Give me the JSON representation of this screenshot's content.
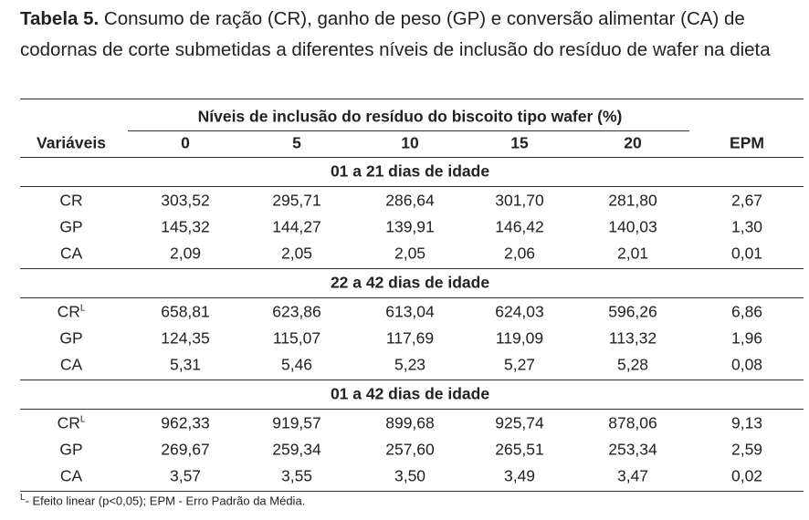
{
  "caption": {
    "label": "Tabela 5.",
    "text": "Consumo de ração (CR), ganho de peso (GP) e conversão alimentar (CA) de codornas de corte submetidas a diferentes níveis de inclusão do resíduo de wafer na dieta"
  },
  "table": {
    "group_header": "Níveis de inclusão do resíduo do biscoito tipo wafer (%)",
    "columns": [
      "Variáveis",
      "0",
      "5",
      "10",
      "15",
      "20",
      "EPM"
    ],
    "sections": [
      {
        "title": "01 a 21 dias de idade",
        "rows": [
          {
            "variable": "CR",
            "values": [
              "303,52",
              "295,71",
              "286,64",
              "301,70",
              "281,80",
              "2,67"
            ]
          },
          {
            "variable": "GP",
            "values": [
              "145,32",
              "144,27",
              "139,91",
              "146,42",
              "140,03",
              "1,30"
            ]
          },
          {
            "variable": "CA",
            "values": [
              "2,09",
              "2,05",
              "2,05",
              "2,06",
              "2,01",
              "0,01"
            ]
          }
        ]
      },
      {
        "title": "22 a 42 dias de idade",
        "rows": [
          {
            "variable": "CR",
            "sup": "L",
            "values": [
              "658,81",
              "623,86",
              "613,04",
              "624,03",
              "596,26",
              "6,86"
            ]
          },
          {
            "variable": "GP",
            "values": [
              "124,35",
              "115,07",
              "117,69",
              "119,09",
              "113,32",
              "1,96"
            ]
          },
          {
            "variable": "CA",
            "values": [
              "5,31",
              "5,46",
              "5,23",
              "5,27",
              "5,28",
              "0,08"
            ]
          }
        ]
      },
      {
        "title": "01 a 42 dias de idade",
        "rows": [
          {
            "variable": "CR",
            "sup": "L",
            "values": [
              "962,33",
              "919,57",
              "899,68",
              "925,74",
              "878,06",
              "9,13"
            ]
          },
          {
            "variable": "GP",
            "values": [
              "269,67",
              "259,34",
              "257,60",
              "265,51",
              "253,34",
              "2,59"
            ]
          },
          {
            "variable": "CA",
            "values": [
              "3,57",
              "3,55",
              "3,50",
              "3,49",
              "3,47",
              "0,02"
            ]
          }
        ]
      }
    ]
  },
  "footnote": {
    "mark": "L",
    "text": "- Efeito linear (p<0,05); EPM - Erro Padrão da Média."
  }
}
